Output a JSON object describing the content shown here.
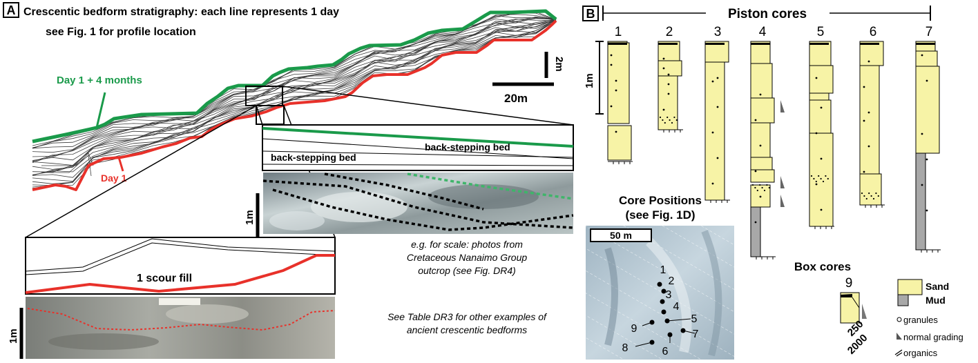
{
  "panel_a": {
    "letter": "A",
    "title_line1": "Crescentic bedform stratigraphy: each line represents 1 day",
    "title_line2": "see Fig. 1 for profile location",
    "label_day_late": "Day 1 + 4 months",
    "label_day_first": "Day 1",
    "scale_vertical": "2m",
    "scale_horizontal": "20m",
    "inset_bed_label_upper": "back-stepping bed",
    "inset_bed_label_lower": "back-stepping bed",
    "photo_scale_upper": "1m",
    "scour_label": "1 scour fill",
    "photo_scale_lower": "1m",
    "caption_photo_line1": "e.g. for scale: photos from",
    "caption_photo_line2": "Cretaceous Nanaimo Group",
    "caption_photo_line3": "outcrop (see Fig. DR4)",
    "caption_table_line1": "See Table DR3 for other examples of",
    "caption_table_line2": "ancient crescentic  bedforms",
    "colors": {
      "green": "#1a9a4a",
      "red": "#e8312a",
      "gray": "#3b3b3b"
    }
  },
  "panel_b": {
    "letter": "B",
    "piston_title": "Piston cores",
    "piston_scale": "1m",
    "core_numbers": [
      "1",
      "2",
      "3",
      "4",
      "5",
      "6",
      "7"
    ],
    "positions_title_line1": "Core Positions",
    "positions_title_line2": "(see Fig. 1D)",
    "map_scale": "50 m",
    "map_labels": [
      "1",
      "2",
      "3",
      "4",
      "5",
      "6",
      "7",
      "8",
      "9"
    ],
    "box_title": "Box cores",
    "box_core_number": "9",
    "grain_ticks": [
      "250",
      "2000"
    ],
    "legend": {
      "sand": "Sand",
      "mud": "Mud",
      "granules": "granules",
      "grading": "normal grading",
      "organics": "organics"
    },
    "colors": {
      "sand": "#f7f3a6",
      "mud": "#a8a8a8"
    }
  }
}
